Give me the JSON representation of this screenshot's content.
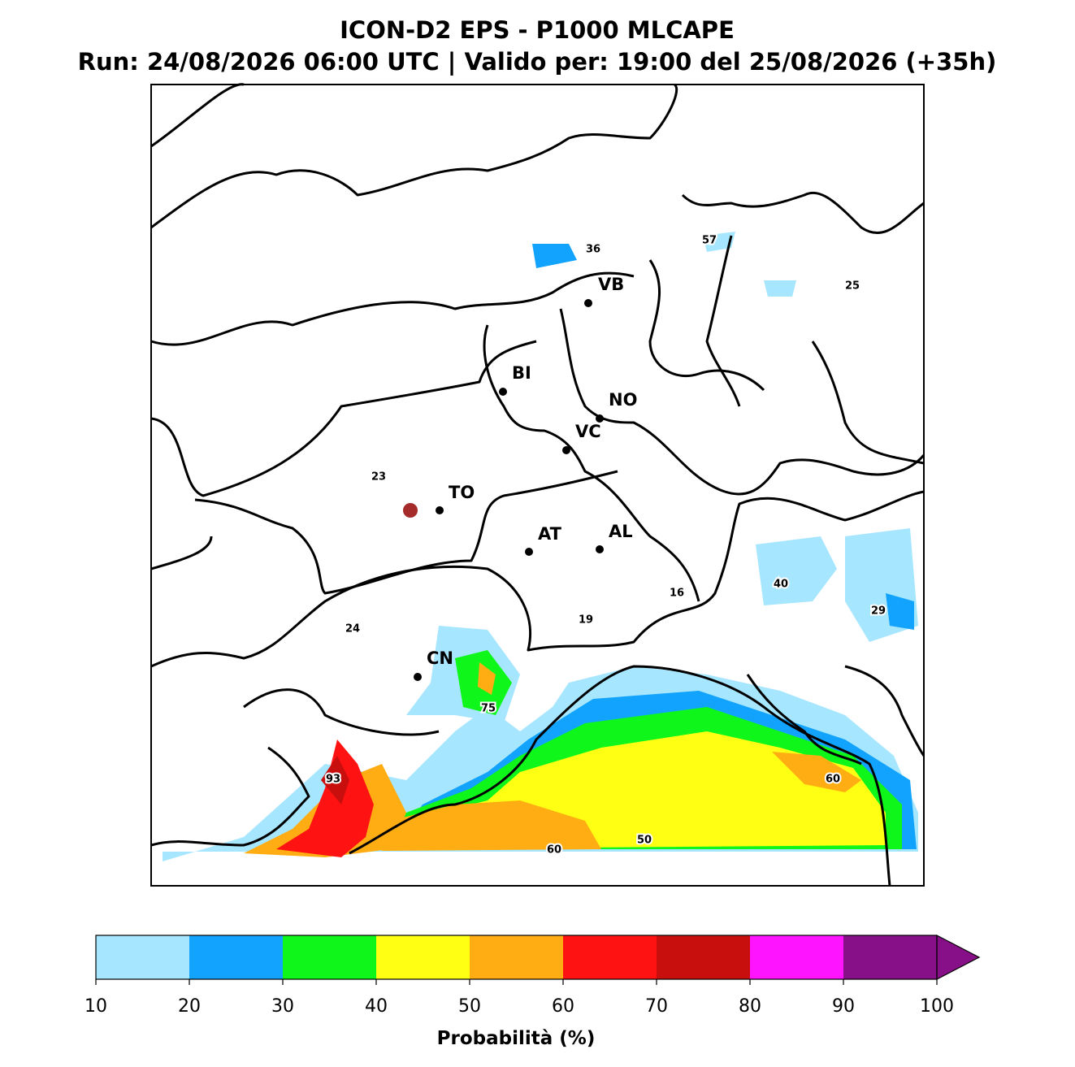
{
  "header": {
    "title": "ICON-D2 EPS - P1000 MLCAPE",
    "subtitle": "Run: 24/08/2026 06:00 UTC | Valido per: 19:00 del 25/08/2026 (+35h)"
  },
  "cities": [
    "VB",
    "BI",
    "NO",
    "VC",
    "TO",
    "AT",
    "AL",
    "CN"
  ],
  "map_labels": [
    "36",
    "57",
    "25",
    "23",
    "40",
    "29",
    "16",
    "19",
    "24",
    "75",
    "93",
    "60",
    "50",
    "60"
  ],
  "colorbar": {
    "label": "Probabilità (%)",
    "ticks": [
      10,
      20,
      30,
      40,
      50,
      60,
      70,
      80,
      90,
      100
    ],
    "colors": [
      "#a6e6ff",
      "#12a3ff",
      "#0ff71a",
      "#ffff14",
      "#ffad12",
      "#ff1212",
      "#c90e0e",
      "#ff14ff",
      "#870f87"
    ]
  }
}
